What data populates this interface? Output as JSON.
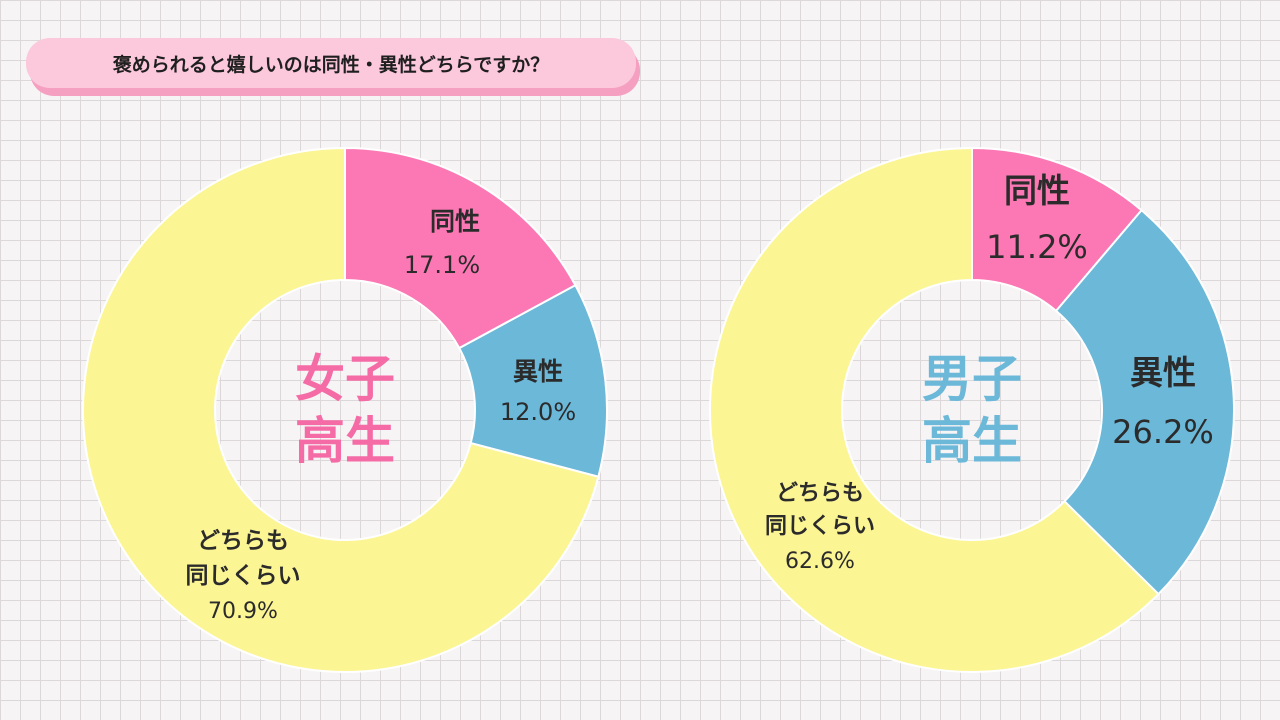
{
  "title": "褒められると嬉しいのは同性・異性どちらですか？",
  "colors": {
    "same": "#fb78b4",
    "opposite": "#6cb8d9",
    "both": "#fcf594",
    "label_dark": "#2b2b2b",
    "center_girls": "#f56ba5",
    "center_boys": "#6cb8d9"
  },
  "chart_data": [
    {
      "type": "pie",
      "center_label": [
        "女子",
        "高生"
      ],
      "slices": [
        {
          "key": "same",
          "label": [
            "同性"
          ],
          "value": 17.1,
          "value_text": "17.1%"
        },
        {
          "key": "opposite",
          "label": [
            "異性"
          ],
          "value": 12.0,
          "value_text": "12.0%"
        },
        {
          "key": "both",
          "label": [
            "どちらも",
            "同じくらい"
          ],
          "value": 70.9,
          "value_text": "70.9%"
        }
      ]
    },
    {
      "type": "pie",
      "center_label": [
        "男子",
        "高生"
      ],
      "slices": [
        {
          "key": "same",
          "label": [
            "同性"
          ],
          "value": 11.2,
          "value_text": "11.2%"
        },
        {
          "key": "opposite",
          "label": [
            "異性"
          ],
          "value": 26.2,
          "value_text": "26.2%"
        },
        {
          "key": "both",
          "label": [
            "どちらも",
            "同じくらい"
          ],
          "value": 62.6,
          "value_text": "62.6%"
        }
      ]
    }
  ]
}
